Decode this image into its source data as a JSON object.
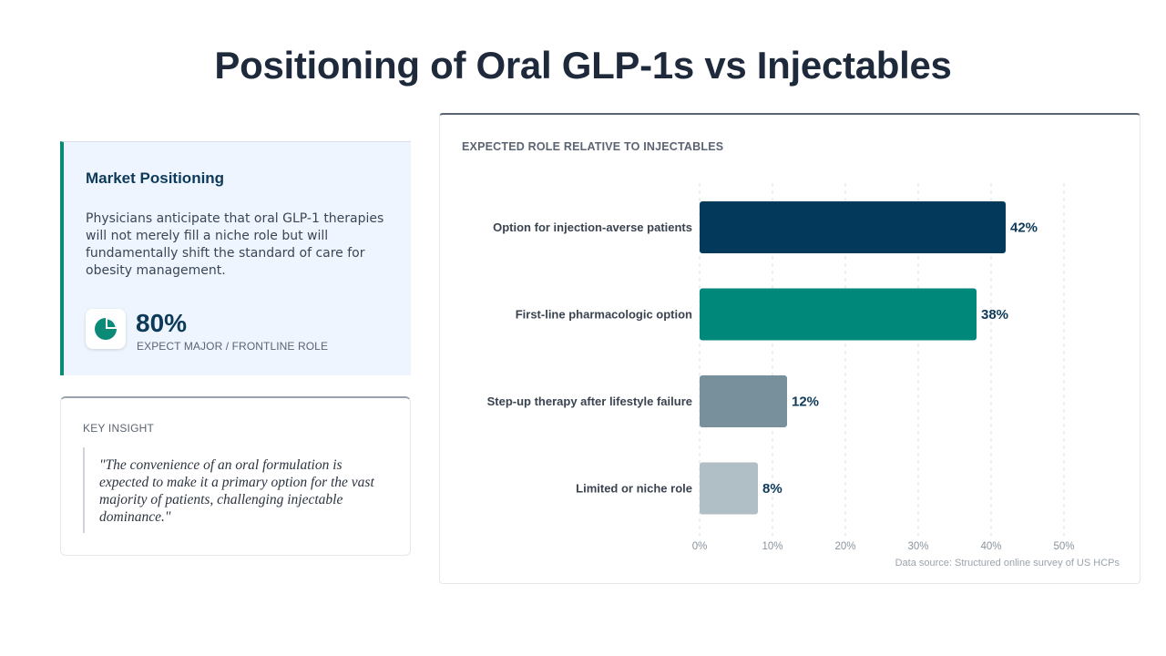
{
  "title": "Positioning of Oral GLP-1s vs Injectables",
  "positioning": {
    "heading": "Market Positioning",
    "body": "Physicians anticipate that oral GLP-1 therapies will not merely fill a niche role but will fundamentally shift the standard of care for obesity management.",
    "stat_value": "80%",
    "stat_label": "EXPECT MAJOR / FRONTLINE ROLE",
    "icon": "pie-chart-icon"
  },
  "insight": {
    "heading": "KEY INSIGHT",
    "quote": "\"The convenience of an oral formulation is expected to make it a primary option for the vast majority of patients, challenging injectable dominance.\""
  },
  "chart_heading": "EXPECTED ROLE RELATIVE TO INJECTABLES",
  "data_source": "Data source: Structured online survey of US HCPs",
  "colors": {
    "bars": [
      "#033a5c",
      "#00897b",
      "#78909c",
      "#b0bec5"
    ],
    "accent": "#0b8a78",
    "value_text": "#0e3a5a"
  },
  "chart_data": {
    "type": "bar",
    "orientation": "horizontal",
    "categories": [
      "Option for injection-averse patients",
      "First-line pharmacologic option",
      "Step-up therapy after lifestyle failure",
      "Limited or niche role"
    ],
    "values": [
      42,
      38,
      12,
      8
    ],
    "value_labels": [
      "42%",
      "38%",
      "12%",
      "8%"
    ],
    "xlim": [
      0,
      50
    ],
    "xticks": [
      0,
      10,
      20,
      30,
      40,
      50
    ],
    "xtick_labels": [
      "0%",
      "10%",
      "20%",
      "30%",
      "40%",
      "50%"
    ],
    "grid": true,
    "legend": "none"
  }
}
